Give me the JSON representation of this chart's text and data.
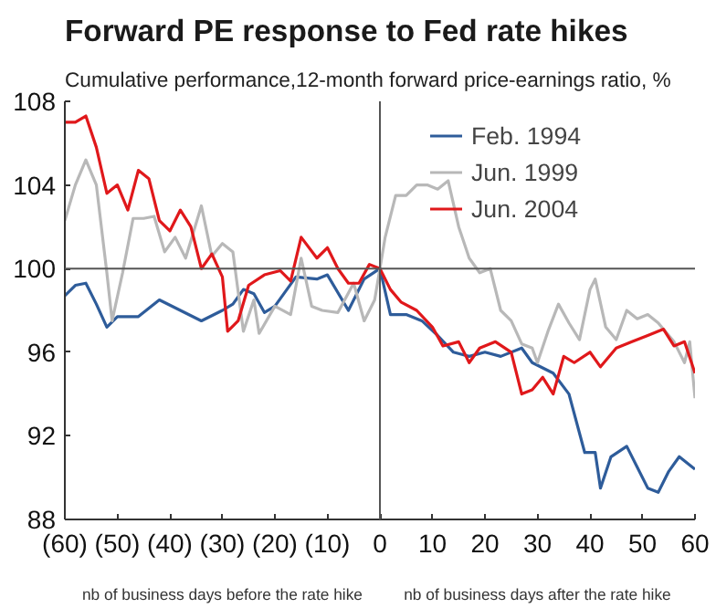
{
  "chart_data": {
    "type": "line",
    "title": "Forward PE response to Fed rate hikes",
    "subtitle": "Cumulative performance,12-month forward price-earnings ratio, %",
    "annotations": [
      "nb of business days before the rate hike",
      "nb of business days after the rate hike"
    ],
    "xlim": [
      -60,
      60
    ],
    "ylim": [
      88,
      108
    ],
    "xticks": [
      {
        "value": -60,
        "label": "(60)"
      },
      {
        "value": -50,
        "label": "(50)"
      },
      {
        "value": -40,
        "label": "(40)"
      },
      {
        "value": -30,
        "label": "(30)"
      },
      {
        "value": -20,
        "label": "(20)"
      },
      {
        "value": -10,
        "label": "(10)"
      },
      0,
      10,
      20,
      30,
      40,
      50,
      60
    ],
    "yticks": [
      88,
      92,
      96,
      100,
      104,
      108
    ],
    "grid": false,
    "legend": "top right",
    "line_style": "solid",
    "ref_lines": [
      {
        "axis": "y",
        "value": 100,
        "color": "#555555"
      },
      {
        "axis": "x",
        "value": 0,
        "color": "#555555"
      }
    ],
    "series": [
      {
        "name": "Feb. 1994",
        "color": "#2e5c9a",
        "x": [
          -60,
          -58,
          -56,
          -54,
          -52,
          -50,
          -46,
          -42,
          -38,
          -34,
          -30,
          -28,
          -26,
          -24,
          -22,
          -20,
          -16,
          -12,
          -10,
          -6,
          -3,
          0,
          2,
          5,
          8,
          11,
          14,
          17,
          20,
          23,
          27,
          29,
          33,
          36,
          39,
          41,
          42,
          44,
          47,
          49,
          51,
          53,
          55,
          57,
          60
        ],
        "values": [
          98.7,
          99.2,
          99.3,
          98.3,
          97.2,
          97.7,
          97.7,
          98.5,
          98.0,
          97.5,
          98.0,
          98.3,
          99.0,
          98.8,
          97.9,
          98.2,
          99.6,
          99.5,
          99.7,
          98.0,
          99.5,
          100,
          97.8,
          97.8,
          97.5,
          96.8,
          96.0,
          95.8,
          96.0,
          95.8,
          96.2,
          95.5,
          95.0,
          94.0,
          91.2,
          91.2,
          89.5,
          91.0,
          91.5,
          90.5,
          89.5,
          89.3,
          90.3,
          91.0,
          90.4
        ]
      },
      {
        "name": "Jun. 1999",
        "color": "#b8b8b8",
        "x": [
          -60,
          -58,
          -56,
          -54,
          -52,
          -51,
          -49,
          -47,
          -45,
          -43,
          -41,
          -39,
          -37,
          -34,
          -32,
          -30,
          -28,
          -26,
          -24,
          -23,
          -20,
          -17,
          -15,
          -13,
          -11,
          -8,
          -5,
          -3,
          -1,
          0,
          1,
          3,
          5,
          7,
          9,
          11,
          13,
          15,
          17,
          19,
          21,
          23,
          25,
          27,
          29,
          30,
          32,
          34,
          36,
          38,
          40,
          41,
          43,
          45,
          47,
          49,
          51,
          53,
          56,
          58,
          59,
          60
        ],
        "values": [
          102.3,
          104.0,
          105.2,
          104.0,
          99.8,
          97.5,
          99.8,
          102.4,
          102.4,
          102.5,
          100.8,
          101.5,
          100.5,
          103.0,
          100.6,
          101.2,
          100.8,
          97.0,
          98.5,
          96.9,
          98.2,
          97.8,
          100.5,
          98.2,
          98.0,
          97.9,
          99.3,
          97.5,
          98.5,
          100,
          101.5,
          103.5,
          103.5,
          104.0,
          104.0,
          103.8,
          104.2,
          102.0,
          100.5,
          99.8,
          100.0,
          98.0,
          97.5,
          96.4,
          96.2,
          95.5,
          97.0,
          98.3,
          97.4,
          96.6,
          99.0,
          99.5,
          97.2,
          96.6,
          98.0,
          97.6,
          97.8,
          97.4,
          96.5,
          95.5,
          96.5,
          93.8
        ]
      },
      {
        "name": "Jun. 2004",
        "color": "#e0181b",
        "x": [
          -60,
          -58,
          -56,
          -54,
          -52,
          -50,
          -48,
          -46,
          -44,
          -42,
          -40,
          -38,
          -36,
          -34,
          -32,
          -30,
          -29,
          -27,
          -25,
          -22,
          -19,
          -17,
          -15,
          -12,
          -10,
          -8,
          -6,
          -4,
          -2,
          0,
          2,
          4,
          7,
          10,
          12,
          15,
          17,
          19,
          22,
          25,
          27,
          29,
          31,
          33,
          35,
          37,
          40,
          42,
          45,
          48,
          51,
          54,
          56,
          58,
          60
        ],
        "values": [
          107.0,
          107.0,
          107.3,
          105.8,
          103.6,
          104.0,
          102.8,
          104.7,
          104.3,
          102.3,
          101.8,
          102.8,
          102.0,
          100.0,
          100.7,
          99.6,
          97.0,
          97.5,
          99.2,
          99.7,
          99.9,
          99.4,
          101.5,
          100.5,
          101.0,
          100.0,
          99.3,
          99.3,
          100.2,
          100,
          99.0,
          98.4,
          98.0,
          97.2,
          96.3,
          96.5,
          95.5,
          96.2,
          96.5,
          96.0,
          94.0,
          94.2,
          94.8,
          94.0,
          95.8,
          95.5,
          96.0,
          95.3,
          96.2,
          96.5,
          96.8,
          97.1,
          96.3,
          96.5,
          95.0
        ]
      }
    ]
  }
}
